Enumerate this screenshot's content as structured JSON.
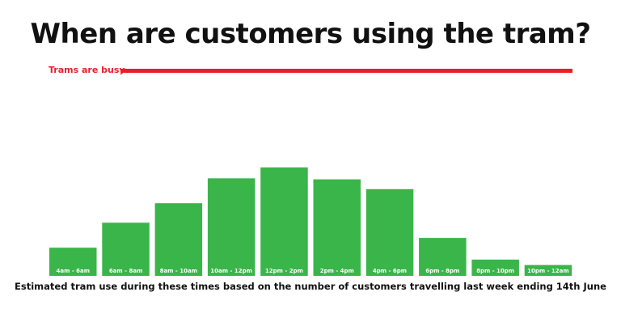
{
  "title": "When are customers using the tram?",
  "busy_label": "Trams are busy",
  "caption": "Estimated tram use during these times based on the number of customers travelling last week ending 14th June",
  "colors": {
    "bar": "#3ab54a",
    "busy": "#e8202a",
    "bar_label": "#ffffff",
    "text": "#111111"
  },
  "chart_data": {
    "type": "bar",
    "categories": [
      "4am - 6am",
      "6am - 8am",
      "8am - 10am",
      "10am - 12pm",
      "12pm - 2pm",
      "2pm - 4pm",
      "4pm - 6pm",
      "6pm - 8pm",
      "8pm - 10pm",
      "10pm - 12am"
    ],
    "values": [
      26,
      49,
      67,
      90,
      100,
      89,
      80,
      35,
      15,
      10
    ],
    "title": "When are customers using the tram?",
    "xlabel": "Estimated tram use during these times based on the number of customers travelling last week ending 14th June",
    "ylabel": "",
    "grid": false,
    "legend": "none"
  }
}
